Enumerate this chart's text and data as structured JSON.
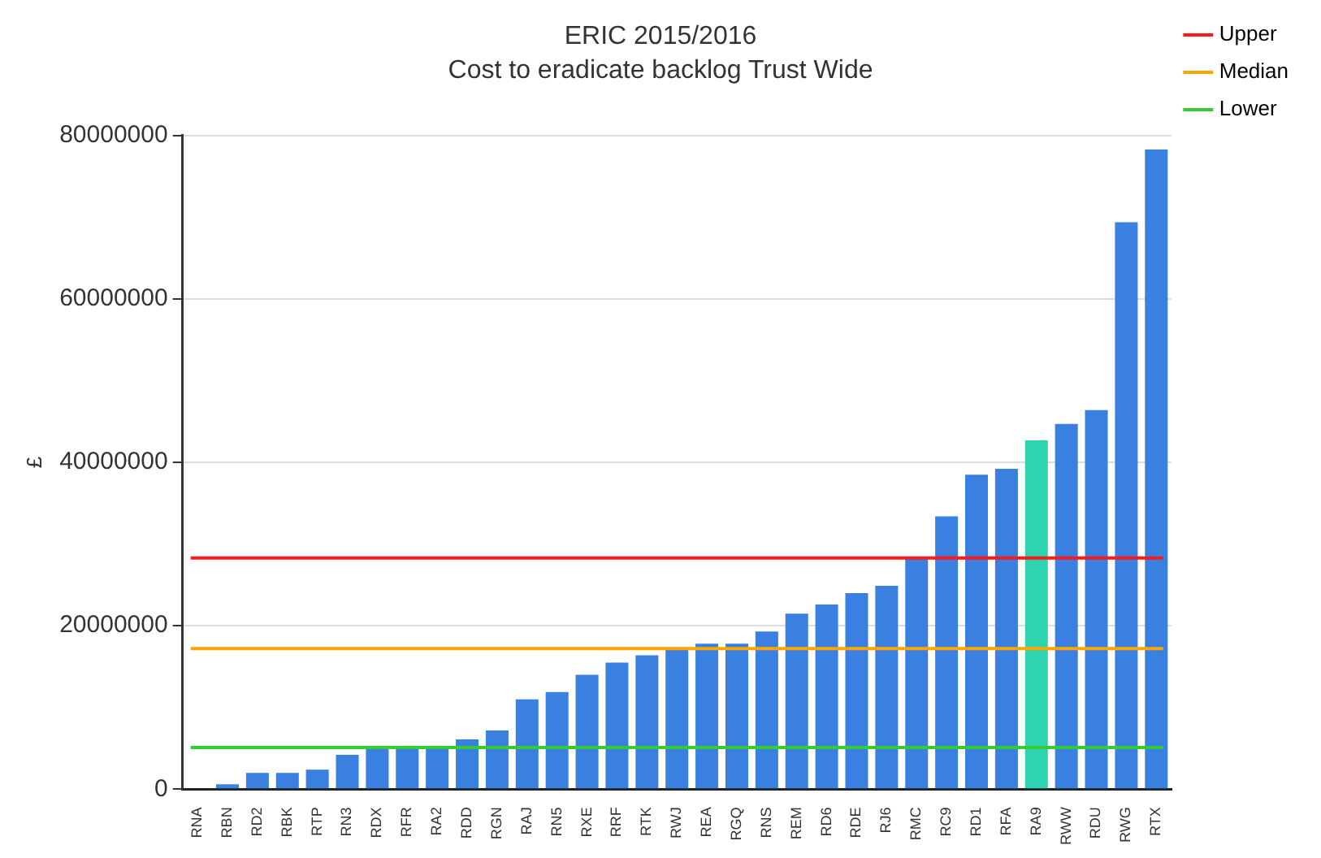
{
  "chart_data": {
    "type": "bar",
    "title": "ERIC 2015/2016",
    "subtitle": "Cost to eradicate backlog Trust Wide",
    "ylabel": "£",
    "categories": [
      "RNA",
      "RBN",
      "RD2",
      "RBK",
      "RTP",
      "RN3",
      "RDX",
      "RFR",
      "RA2",
      "RDD",
      "RGN",
      "RAJ",
      "RN5",
      "RXE",
      "RRF",
      "RTK",
      "RWJ",
      "REA",
      "RGQ",
      "RNS",
      "REM",
      "RD6",
      "RDE",
      "RJ6",
      "RMC",
      "RC9",
      "RD1",
      "RFA",
      "RA9",
      "RWW",
      "RDU",
      "RWG",
      "RTX"
    ],
    "values": [
      0,
      600000,
      2000000,
      2000000,
      2400000,
      4200000,
      5100000,
      5100000,
      5100000,
      6100000,
      7200000,
      11000000,
      11900000,
      14000000,
      15500000,
      16400000,
      17200000,
      17800000,
      17800000,
      19300000,
      21500000,
      22600000,
      24000000,
      24900000,
      28300000,
      33400000,
      38500000,
      39200000,
      42700000,
      44700000,
      46400000,
      69400000,
      78300000
    ],
    "colors": [
      "#3a80e0",
      "#3a80e0",
      "#3a80e0",
      "#3a80e0",
      "#3a80e0",
      "#3a80e0",
      "#3a80e0",
      "#3a80e0",
      "#3a80e0",
      "#3a80e0",
      "#3a80e0",
      "#3a80e0",
      "#3a80e0",
      "#3a80e0",
      "#3a80e0",
      "#3a80e0",
      "#3a80e0",
      "#3a80e0",
      "#3a80e0",
      "#3a80e0",
      "#3a80e0",
      "#3a80e0",
      "#3a80e0",
      "#3a80e0",
      "#3a80e0",
      "#3a80e0",
      "#3a80e0",
      "#3a80e0",
      "#2ed3b0",
      "#3a80e0",
      "#3a80e0",
      "#3a80e0",
      "#3a80e0"
    ],
    "ylim": [
      0,
      80000000
    ],
    "yticks": [
      0,
      20000000,
      40000000,
      60000000,
      80000000
    ],
    "grid": "y",
    "legend": "top right",
    "ref_lines": [
      {
        "axis": "y",
        "value": 28300000,
        "label": "Upper",
        "color": "#ff1a1a"
      },
      {
        "axis": "y",
        "value": 17200000,
        "label": "Median",
        "color": "#ffa500"
      },
      {
        "axis": "y",
        "value": 5100000,
        "label": "Lower",
        "color": "#33cc33"
      }
    ]
  }
}
